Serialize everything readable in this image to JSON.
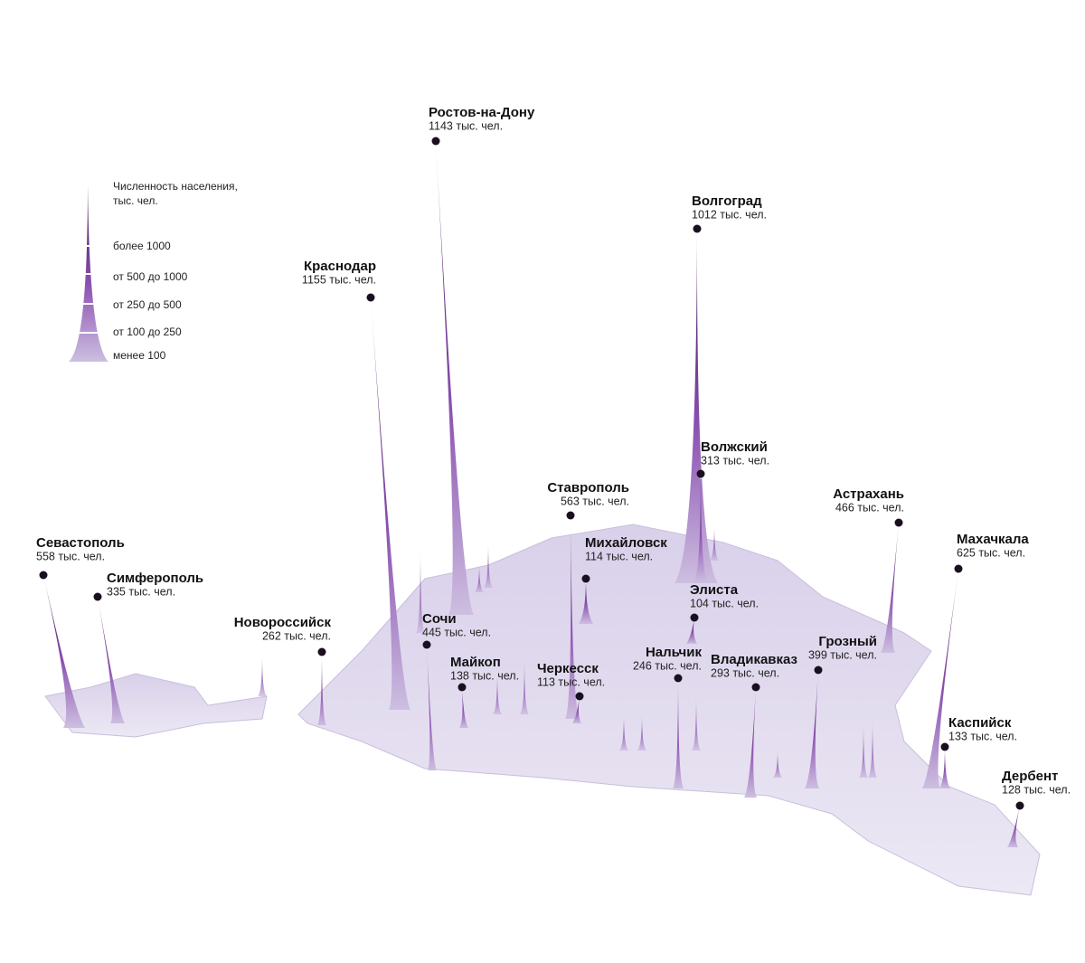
{
  "legend": {
    "title": [
      "Численность населения,",
      "тыс. чел."
    ],
    "items": [
      "более 1000",
      "от 500 до 1000",
      "от 250 до 500",
      "от 100 до 250",
      "менее 100"
    ]
  },
  "cities": [
    {
      "name": "Ростов-на-Дону",
      "population": "1143 тыс. чел."
    },
    {
      "name": "Волгоград",
      "population": "1012 тыс. чел."
    },
    {
      "name": "Краснодар",
      "population": "1155 тыс. чел."
    },
    {
      "name": "Волжский",
      "population": "313 тыс. чел."
    },
    {
      "name": "Ставрополь",
      "population": "563 тыс. чел."
    },
    {
      "name": "Астрахань",
      "population": "466 тыс. чел."
    },
    {
      "name": "Михайловск",
      "population": "114 тыс. чел."
    },
    {
      "name": "Махачкала",
      "population": "625 тыс. чел."
    },
    {
      "name": "Севастополь",
      "population": "558 тыс. чел."
    },
    {
      "name": "Симферополь",
      "population": "335 тыс. чел."
    },
    {
      "name": "Элиста",
      "population": "104 тыс. чел."
    },
    {
      "name": "Новороссийск",
      "population": "262 тыс. чел."
    },
    {
      "name": "Сочи",
      "population": "445 тыс. чел."
    },
    {
      "name": "Майкоп",
      "population": "138 тыс. чел."
    },
    {
      "name": "Черкесск",
      "population": "113 тыс. чел."
    },
    {
      "name": "Нальчик",
      "population": "246 тыс. чел."
    },
    {
      "name": "Владикавказ",
      "population": "293 тыс. чел."
    },
    {
      "name": "Грозный",
      "population": "399 тыс. чел."
    },
    {
      "name": "Каспийск",
      "population": "133 тыс. чел."
    },
    {
      "name": "Дербент",
      "population": "128 тыс. чел."
    }
  ]
}
